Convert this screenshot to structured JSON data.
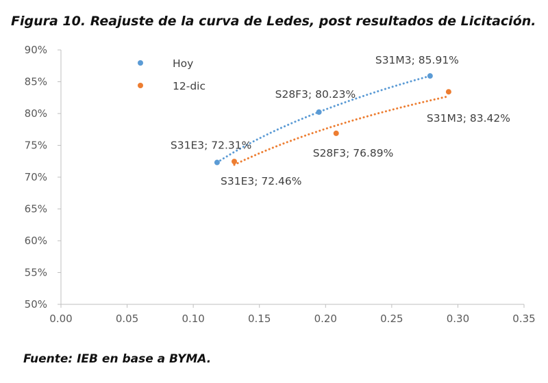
{
  "figure": {
    "title": "Figura 10. Reajuste de la curva de Ledes, post resultados de Licitación.",
    "source": "Fuente: IEB en base a BYMA."
  },
  "chart_data": {
    "type": "scatter",
    "title": "",
    "xlabel": "",
    "ylabel": "",
    "xlim": [
      0,
      0.35
    ],
    "ylim": [
      50,
      90
    ],
    "x_ticks": [
      "0.00",
      "0.05",
      "0.10",
      "0.15",
      "0.20",
      "0.25",
      "0.30",
      "0.35"
    ],
    "y_ticks": [
      "50%",
      "55%",
      "60%",
      "65%",
      "70%",
      "75%",
      "80%",
      "85%",
      "90%"
    ],
    "grid": false,
    "legend_position": "top-left",
    "trendline": "dotted logarithmic",
    "series": [
      {
        "name": "Hoy",
        "color": "#5B9BD5",
        "points": [
          {
            "x": 0.118,
            "y": 72.31,
            "label": "S31E3; 72.31%"
          },
          {
            "x": 0.195,
            "y": 80.23,
            "label": "S28F3; 80.23%"
          },
          {
            "x": 0.279,
            "y": 85.91,
            "label": "S31M3; 85.91%"
          }
        ]
      },
      {
        "name": "12-dic",
        "color": "#ED7D31",
        "points": [
          {
            "x": 0.131,
            "y": 72.46,
            "label": "S31E3; 72.46%"
          },
          {
            "x": 0.208,
            "y": 76.89,
            "label": "S28F3; 76.89%"
          },
          {
            "x": 0.293,
            "y": 83.42,
            "label": "S31M3; 83.42%"
          }
        ]
      }
    ]
  }
}
